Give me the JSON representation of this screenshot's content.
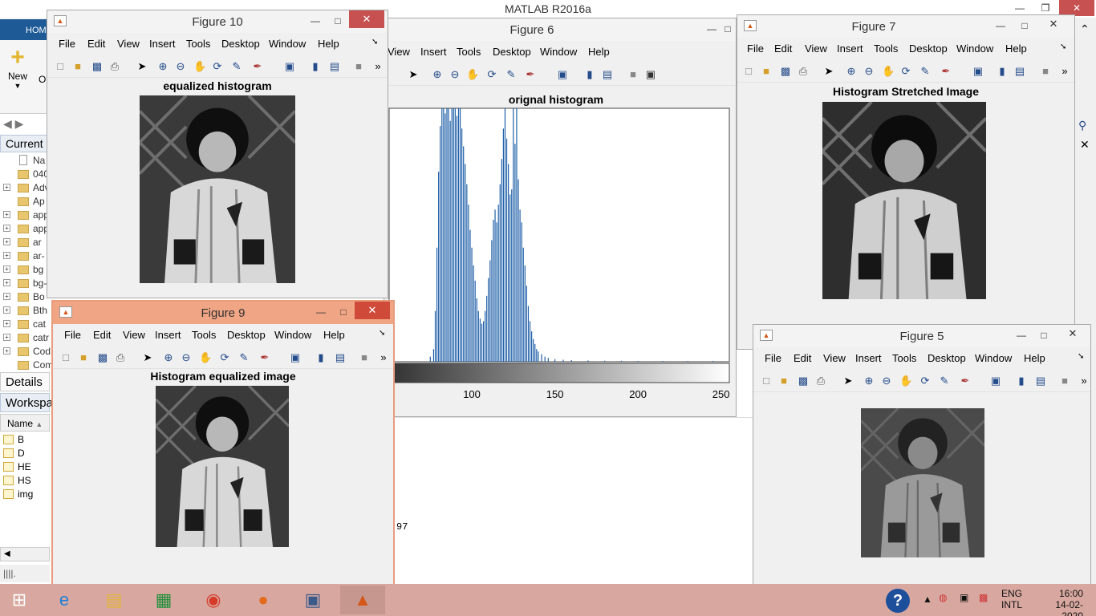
{
  "main": {
    "title": "MATLAB R2016a",
    "home_tab": "HOME",
    "new_label": "New",
    "open_partial": "O",
    "current_folder_label": "Current",
    "name_col": "Na",
    "folders": [
      "040",
      "Adv",
      "Ap",
      "app",
      "app",
      "ar",
      "ar-",
      "bg",
      "bg-",
      "Bo",
      "Bth",
      "cat",
      "catr",
      "Cod",
      "Com"
    ],
    "details_label": "Details",
    "workspace_label": "Workspa",
    "ws_name_col": "Name",
    "workspace_vars": [
      "B",
      "D",
      "HE",
      "HS",
      "img"
    ],
    "cmd_fragment": "97"
  },
  "fig10": {
    "title": "Figure 10",
    "axes_title": "equalized histogram"
  },
  "fig6": {
    "title": "Figure 6",
    "axes_title": "orignal histogram"
  },
  "fig7": {
    "title": "Figure 7",
    "axes_title": "Histogram Stretched Image"
  },
  "fig9": {
    "title": "Figure 9",
    "axes_title": "Histogram equalized image"
  },
  "fig5": {
    "title": "Figure 5"
  },
  "menus": [
    "File",
    "Edit",
    "View",
    "Insert",
    "Tools",
    "Desktop",
    "Window",
    "Help"
  ],
  "fig6_menus": [
    "View",
    "Insert",
    "Tools",
    "Desktop",
    "Window",
    "Help"
  ],
  "chart_data": {
    "type": "bar",
    "title": "orignal histogram",
    "xlim": [
      0,
      255
    ],
    "xticks": [
      50,
      100,
      150,
      200,
      250
    ],
    "bars": [
      {
        "x": 75,
        "v": 0.02
      },
      {
        "x": 77,
        "v": 0.05
      },
      {
        "x": 78,
        "v": 0.2
      },
      {
        "x": 79,
        "v": 0.45
      },
      {
        "x": 80,
        "v": 0.75
      },
      {
        "x": 81,
        "v": 0.93
      },
      {
        "x": 82,
        "v": 1.0
      },
      {
        "x": 83,
        "v": 1.0
      },
      {
        "x": 84,
        "v": 0.98
      },
      {
        "x": 85,
        "v": 1.0
      },
      {
        "x": 86,
        "v": 1.0
      },
      {
        "x": 87,
        "v": 0.95
      },
      {
        "x": 88,
        "v": 1.0
      },
      {
        "x": 89,
        "v": 1.0
      },
      {
        "x": 90,
        "v": 1.0
      },
      {
        "x": 91,
        "v": 0.97
      },
      {
        "x": 92,
        "v": 1.0
      },
      {
        "x": 93,
        "v": 1.0
      },
      {
        "x": 94,
        "v": 0.92
      },
      {
        "x": 95,
        "v": 0.85
      },
      {
        "x": 96,
        "v": 0.78
      },
      {
        "x": 97,
        "v": 0.7
      },
      {
        "x": 98,
        "v": 0.62
      },
      {
        "x": 99,
        "v": 0.52
      },
      {
        "x": 100,
        "v": 0.45
      },
      {
        "x": 101,
        "v": 0.38
      },
      {
        "x": 102,
        "v": 0.32
      },
      {
        "x": 103,
        "v": 0.25
      },
      {
        "x": 104,
        "v": 0.2
      },
      {
        "x": 105,
        "v": 0.17
      },
      {
        "x": 106,
        "v": 0.15
      },
      {
        "x": 107,
        "v": 0.16
      },
      {
        "x": 108,
        "v": 0.2
      },
      {
        "x": 109,
        "v": 0.26
      },
      {
        "x": 110,
        "v": 0.33
      },
      {
        "x": 111,
        "v": 0.4
      },
      {
        "x": 112,
        "v": 0.48
      },
      {
        "x": 113,
        "v": 0.56
      },
      {
        "x": 114,
        "v": 0.6
      },
      {
        "x": 115,
        "v": 0.55
      },
      {
        "x": 116,
        "v": 0.62
      },
      {
        "x": 117,
        "v": 0.7
      },
      {
        "x": 118,
        "v": 0.8
      },
      {
        "x": 119,
        "v": 0.92
      },
      {
        "x": 120,
        "v": 1.0
      },
      {
        "x": 121,
        "v": 0.88
      },
      {
        "x": 122,
        "v": 0.78
      },
      {
        "x": 123,
        "v": 0.66
      },
      {
        "x": 124,
        "v": 0.68
      },
      {
        "x": 125,
        "v": 1.0
      },
      {
        "x": 126,
        "v": 0.86
      },
      {
        "x": 127,
        "v": 1.0
      },
      {
        "x": 128,
        "v": 0.72
      },
      {
        "x": 129,
        "v": 0.6
      },
      {
        "x": 130,
        "v": 0.55
      },
      {
        "x": 131,
        "v": 0.45
      },
      {
        "x": 132,
        "v": 0.38
      },
      {
        "x": 133,
        "v": 0.3
      },
      {
        "x": 134,
        "v": 0.22
      },
      {
        "x": 135,
        "v": 0.16
      },
      {
        "x": 136,
        "v": 0.12
      },
      {
        "x": 137,
        "v": 0.09
      },
      {
        "x": 138,
        "v": 0.07
      },
      {
        "x": 139,
        "v": 0.05
      },
      {
        "x": 140,
        "v": 0.04
      },
      {
        "x": 142,
        "v": 0.03
      },
      {
        "x": 144,
        "v": 0.02
      },
      {
        "x": 146,
        "v": 0.015
      },
      {
        "x": 150,
        "v": 0.01
      },
      {
        "x": 155,
        "v": 0.008
      },
      {
        "x": 160,
        "v": 0.006
      },
      {
        "x": 170,
        "v": 0.005
      },
      {
        "x": 180,
        "v": 0.004
      },
      {
        "x": 190,
        "v": 0.004
      },
      {
        "x": 200,
        "v": 0.003
      },
      {
        "x": 215,
        "v": 0.002
      },
      {
        "x": 230,
        "v": 0.002
      },
      {
        "x": 245,
        "v": 0.002
      }
    ]
  }
}
